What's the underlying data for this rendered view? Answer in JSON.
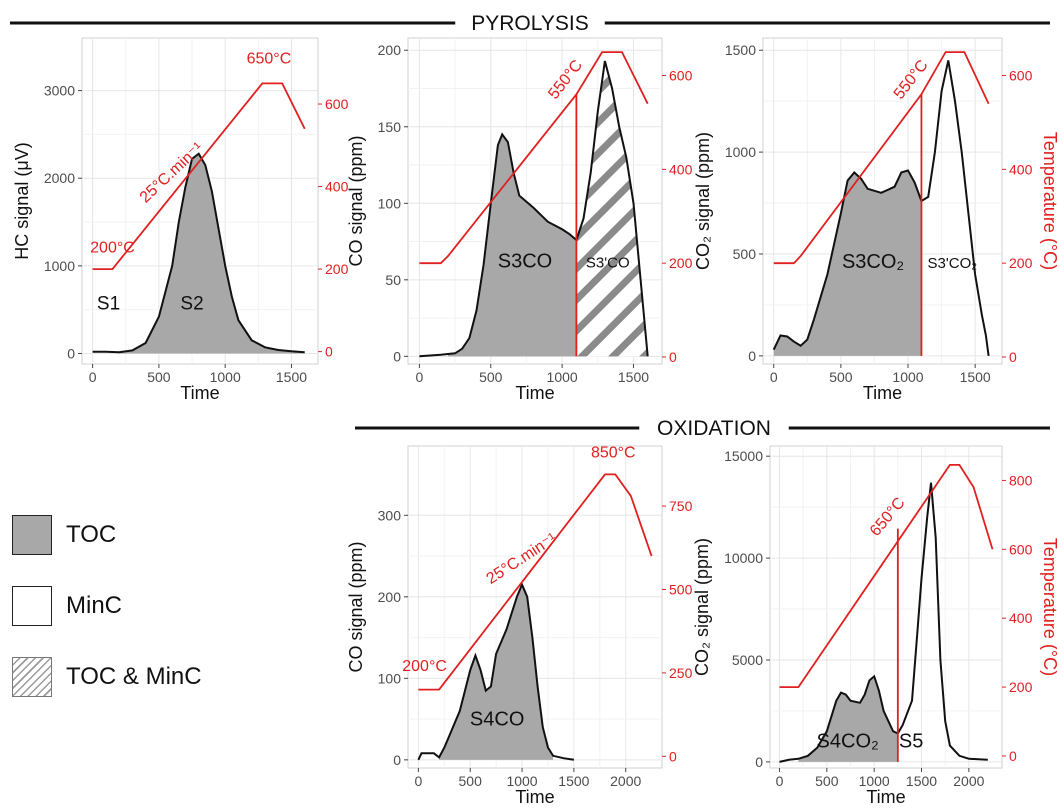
{
  "sections": {
    "pyrolysis": "PYROLYSIS",
    "oxidation": "OXIDATION"
  },
  "legend": [
    {
      "label": "TOC",
      "style": "fill"
    },
    {
      "label": "MinC",
      "style": "none"
    },
    {
      "label": "TOC & MinC",
      "style": "hatch"
    }
  ],
  "colors": {
    "temperature": "#e02020",
    "signal": "#111111",
    "fill": "#a8a8a8",
    "hatch": "#8a8a8a"
  },
  "chart_data": [
    {
      "type": "area",
      "panel": "HC",
      "xlabel": "Time",
      "ylabel": "HC signal (μV)",
      "y2label": "",
      "xlim": [
        -80,
        1700
      ],
      "ylim": [
        -120,
        3600
      ],
      "y2lim": [
        -30,
        760
      ],
      "xticks": [
        0,
        500,
        1000,
        1500
      ],
      "yticks": [
        0,
        1000,
        2000,
        3000
      ],
      "ytick_labels": [
        "0",
        "1000",
        "2000",
        "3000"
      ],
      "y2ticks": [
        0,
        200,
        400,
        600
      ],
      "y2tick_labels": [
        "0",
        "200",
        "400",
        "600"
      ],
      "signal": [
        [
          0,
          20
        ],
        [
          100,
          20
        ],
        [
          200,
          15
        ],
        [
          300,
          35
        ],
        [
          400,
          120
        ],
        [
          500,
          420
        ],
        [
          600,
          1000
        ],
        [
          650,
          1500
        ],
        [
          700,
          1900
        ],
        [
          750,
          2220
        ],
        [
          800,
          2280
        ],
        [
          850,
          2150
        ],
        [
          900,
          1850
        ],
        [
          950,
          1420
        ],
        [
          1000,
          1000
        ],
        [
          1050,
          650
        ],
        [
          1100,
          380
        ],
        [
          1200,
          150
        ],
        [
          1300,
          70
        ],
        [
          1400,
          40
        ],
        [
          1500,
          25
        ],
        [
          1600,
          15
        ]
      ],
      "temperature": [
        [
          0,
          200
        ],
        [
          150,
          200
        ],
        [
          200,
          220
        ],
        [
          1280,
          650
        ],
        [
          1430,
          650
        ],
        [
          1600,
          540
        ]
      ],
      "regions": [
        {
          "x_from": 200,
          "x_to": 1600,
          "style": "fill"
        }
      ],
      "dividers": [],
      "labels": [
        {
          "text": "S1",
          "x": 120,
          "y": 500,
          "size": 19
        },
        {
          "text": "S2",
          "x": 750,
          "y": 500,
          "size": 19
        }
      ],
      "temp_labels": [
        {
          "text": "200°C",
          "x": 150,
          "t": 240,
          "rotate": 0,
          "anchor": "middle"
        },
        {
          "text": "650°C",
          "x": 1330,
          "t": 698,
          "rotate": 0,
          "anchor": "middle"
        },
        {
          "text": "25°C.min⁻¹",
          "x": 620,
          "t": 425,
          "rotate": -43,
          "anchor": "middle"
        }
      ]
    },
    {
      "type": "area",
      "panel": "CO pyrolysis",
      "xlabel": "Time",
      "ylabel": "CO signal (ppm)",
      "y2label": "",
      "xlim": [
        -80,
        1700
      ],
      "ylim": [
        -5,
        208
      ],
      "y2lim": [
        -15,
        680
      ],
      "xticks": [
        0,
        500,
        1000,
        1500
      ],
      "yticks": [
        0,
        50,
        100,
        150,
        200
      ],
      "ytick_labels": [
        "0",
        "50",
        "100",
        "150",
        "200"
      ],
      "y2ticks": [
        0,
        200,
        400,
        600
      ],
      "y2tick_labels": [
        "0",
        "200",
        "400",
        "600"
      ],
      "signal": [
        [
          0,
          0
        ],
        [
          150,
          1
        ],
        [
          250,
          2
        ],
        [
          300,
          5
        ],
        [
          350,
          12
        ],
        [
          400,
          30
        ],
        [
          450,
          60
        ],
        [
          500,
          100
        ],
        [
          550,
          138
        ],
        [
          580,
          145
        ],
        [
          620,
          140
        ],
        [
          660,
          120
        ],
        [
          700,
          105
        ],
        [
          800,
          97
        ],
        [
          900,
          88
        ],
        [
          1000,
          83
        ],
        [
          1050,
          80
        ],
        [
          1100,
          76
        ],
        [
          1150,
          90
        ],
        [
          1200,
          120
        ],
        [
          1250,
          160
        ],
        [
          1300,
          193
        ],
        [
          1350,
          175
        ],
        [
          1400,
          150
        ],
        [
          1450,
          130
        ],
        [
          1500,
          100
        ],
        [
          1550,
          50
        ],
        [
          1600,
          0
        ]
      ],
      "temperature": [
        [
          0,
          200
        ],
        [
          150,
          200
        ],
        [
          200,
          215
        ],
        [
          1100,
          560
        ],
        [
          1280,
          650
        ],
        [
          1420,
          650
        ],
        [
          1600,
          540
        ]
      ],
      "regions": [
        {
          "x_from": 200,
          "x_to": 1100,
          "style": "fill"
        },
        {
          "x_from": 1100,
          "x_to": 1600,
          "style": "hatch"
        }
      ],
      "dividers": [
        {
          "x": 1100,
          "y_top_t": 560
        }
      ],
      "labels": [
        {
          "text": "S3CO",
          "x": 740,
          "y": 58,
          "size": 20
        },
        {
          "text": "S3'CO",
          "x": 1320,
          "y": 58,
          "size": 15
        }
      ],
      "temp_labels": [
        {
          "text": "550°C",
          "x": 1050,
          "t": 585,
          "rotate": -52,
          "anchor": "middle"
        }
      ]
    },
    {
      "type": "area",
      "panel": "CO2 pyrolysis",
      "xlabel": "Time",
      "ylabel": "CO₂ signal (ppm)",
      "y2label": "Temperature (°C)",
      "xlim": [
        -80,
        1700
      ],
      "ylim": [
        -40,
        1560
      ],
      "y2lim": [
        -15,
        680
      ],
      "xticks": [
        0,
        500,
        1000,
        1500
      ],
      "yticks": [
        0,
        500,
        1000,
        1500
      ],
      "ytick_labels": [
        "0",
        "500",
        "1000",
        "1500"
      ],
      "y2ticks": [
        0,
        200,
        400,
        600
      ],
      "y2tick_labels": [
        "0",
        "200",
        "400",
        "600"
      ],
      "signal": [
        [
          0,
          30
        ],
        [
          50,
          100
        ],
        [
          100,
          95
        ],
        [
          150,
          70
        ],
        [
          200,
          50
        ],
        [
          250,
          80
        ],
        [
          300,
          180
        ],
        [
          400,
          400
        ],
        [
          500,
          700
        ],
        [
          550,
          860
        ],
        [
          600,
          900
        ],
        [
          650,
          870
        ],
        [
          700,
          820
        ],
        [
          800,
          800
        ],
        [
          900,
          830
        ],
        [
          950,
          900
        ],
        [
          1000,
          910
        ],
        [
          1050,
          850
        ],
        [
          1100,
          760
        ],
        [
          1150,
          780
        ],
        [
          1200,
          1000
        ],
        [
          1250,
          1300
        ],
        [
          1300,
          1450
        ],
        [
          1350,
          1250
        ],
        [
          1400,
          1000
        ],
        [
          1450,
          700
        ],
        [
          1500,
          400
        ],
        [
          1550,
          200
        ],
        [
          1580,
          100
        ],
        [
          1600,
          0
        ]
      ],
      "temperature": [
        [
          0,
          200
        ],
        [
          150,
          200
        ],
        [
          200,
          215
        ],
        [
          1100,
          560
        ],
        [
          1280,
          650
        ],
        [
          1420,
          650
        ],
        [
          1600,
          540
        ]
      ],
      "regions": [
        {
          "x_from": 0,
          "x_to": 1100,
          "style": "fill"
        }
      ],
      "dividers": [
        {
          "x": 1100,
          "y_top_t": 560
        }
      ],
      "labels": [
        {
          "text": "S3CO₂",
          "x": 740,
          "y": 430,
          "size": 20
        },
        {
          "text": "S3'CO₂",
          "x": 1330,
          "y": 430,
          "size": 15
        }
      ],
      "temp_labels": [
        {
          "text": "550°C",
          "x": 1050,
          "t": 585,
          "rotate": -52,
          "anchor": "middle"
        }
      ]
    },
    {
      "type": "area",
      "panel": "CO oxidation",
      "xlabel": "Time",
      "ylabel": "CO signal (ppm)",
      "y2label": "",
      "xlim": [
        -100,
        2350
      ],
      "ylim": [
        -10,
        385
      ],
      "y2lim": [
        -35,
        930
      ],
      "xticks": [
        0,
        500,
        1000,
        1500,
        2000
      ],
      "yticks": [
        0,
        100,
        200,
        300
      ],
      "ytick_labels": [
        "0",
        "100",
        "200",
        "300"
      ],
      "y2ticks": [
        0,
        250,
        500,
        750
      ],
      "y2tick_labels": [
        "0",
        "250",
        "500",
        "750"
      ],
      "signal": [
        [
          0,
          0
        ],
        [
          30,
          8
        ],
        [
          150,
          8
        ],
        [
          200,
          3
        ],
        [
          250,
          15
        ],
        [
          300,
          30
        ],
        [
          400,
          60
        ],
        [
          500,
          110
        ],
        [
          550,
          128
        ],
        [
          600,
          110
        ],
        [
          650,
          85
        ],
        [
          700,
          90
        ],
        [
          750,
          130
        ],
        [
          800,
          145
        ],
        [
          850,
          160
        ],
        [
          900,
          180
        ],
        [
          950,
          200
        ],
        [
          1000,
          215
        ],
        [
          1050,
          200
        ],
        [
          1100,
          150
        ],
        [
          1150,
          90
        ],
        [
          1200,
          40
        ],
        [
          1250,
          15
        ],
        [
          1300,
          5
        ],
        [
          1400,
          2
        ],
        [
          1500,
          0
        ]
      ],
      "temperature": [
        [
          0,
          200
        ],
        [
          200,
          200
        ],
        [
          1800,
          845
        ],
        [
          1900,
          845
        ],
        [
          2050,
          780
        ],
        [
          2250,
          600
        ]
      ],
      "regions": [
        {
          "x_from": 200,
          "x_to": 1300,
          "style": "fill"
        }
      ],
      "dividers": [],
      "labels": [
        {
          "text": "S4CO",
          "x": 760,
          "y": 42,
          "size": 20
        }
      ],
      "temp_labels": [
        {
          "text": "200°C",
          "x": 60,
          "t": 255,
          "rotate": 0,
          "anchor": "middle"
        },
        {
          "text": "850°C",
          "x": 1880,
          "t": 895,
          "rotate": 0,
          "anchor": "middle"
        },
        {
          "text": "25°C.min⁻¹",
          "x": 1020,
          "t": 580,
          "rotate": -33,
          "anchor": "middle"
        }
      ]
    },
    {
      "type": "area",
      "panel": "CO2 oxidation",
      "xlabel": "Time",
      "ylabel": "CO₂ signal (ppm)",
      "y2label": "Temperature (°C)",
      "xlim": [
        -100,
        2350
      ],
      "ylim": [
        -300,
        15500
      ],
      "y2lim": [
        -35,
        900
      ],
      "xticks": [
        0,
        500,
        1000,
        1500,
        2000
      ],
      "yticks": [
        0,
        5000,
        10000,
        15000
      ],
      "ytick_labels": [
        "0",
        "5000",
        "10000",
        "15000"
      ],
      "y2ticks": [
        0,
        200,
        400,
        600,
        800
      ],
      "y2tick_labels": [
        "0",
        "200",
        "400",
        "600",
        "800"
      ],
      "signal": [
        [
          0,
          0
        ],
        [
          100,
          100
        ],
        [
          200,
          150
        ],
        [
          300,
          300
        ],
        [
          400,
          700
        ],
        [
          500,
          1500
        ],
        [
          600,
          3000
        ],
        [
          650,
          3400
        ],
        [
          700,
          3300
        ],
        [
          750,
          3000
        ],
        [
          850,
          2900
        ],
        [
          900,
          3300
        ],
        [
          950,
          4000
        ],
        [
          1000,
          4200
        ],
        [
          1050,
          3500
        ],
        [
          1100,
          2500
        ],
        [
          1200,
          1500
        ],
        [
          1250,
          1400
        ],
        [
          1300,
          1800
        ],
        [
          1400,
          3000
        ],
        [
          1450,
          6000
        ],
        [
          1500,
          9000
        ],
        [
          1560,
          12000
        ],
        [
          1600,
          13700
        ],
        [
          1650,
          11000
        ],
        [
          1700,
          5000
        ],
        [
          1750,
          2000
        ],
        [
          1800,
          800
        ],
        [
          1900,
          300
        ],
        [
          2000,
          150
        ],
        [
          2200,
          100
        ]
      ],
      "temperature": [
        [
          0,
          200
        ],
        [
          200,
          200
        ],
        [
          1800,
          845
        ],
        [
          1900,
          845
        ],
        [
          2050,
          780
        ],
        [
          2250,
          600
        ]
      ],
      "regions": [
        {
          "x_from": 200,
          "x_to": 1250,
          "style": "fill"
        }
      ],
      "dividers": [
        {
          "x": 1250,
          "y_top_t": 660
        }
      ],
      "labels": [
        {
          "text": "S4CO₂",
          "x": 720,
          "y": 700,
          "size": 20
        },
        {
          "text": "S5",
          "x": 1390,
          "y": 700,
          "size": 20
        }
      ],
      "temp_labels": [
        {
          "text": "650°C",
          "x": 1180,
          "t": 685,
          "rotate": -50,
          "anchor": "middle"
        }
      ]
    }
  ]
}
